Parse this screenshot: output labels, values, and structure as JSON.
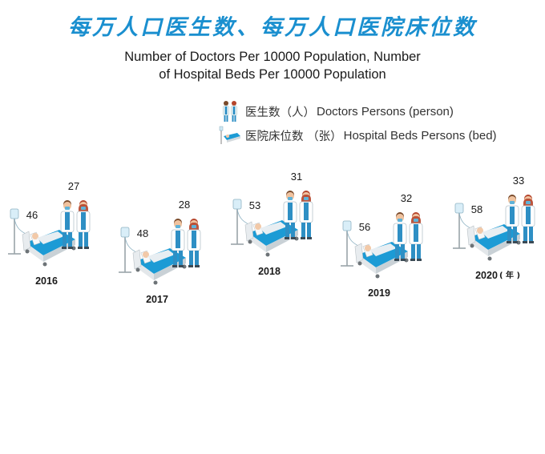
{
  "title_cn": "每万人口医生数、每万人口医院床位数",
  "title_en_line1": "Number of Doctors Per 10000 Population, Number",
  "title_en_line2": "of Hospital Beds Per 10000 Population",
  "legend": {
    "doctors_cn": "医生数（人）",
    "doctors_en": "Doctors Persons (person)",
    "beds_cn": "医院床位数 （张）",
    "beds_en": "Hospital Beds Persons (bed)"
  },
  "year_unit": "( 年 )",
  "colors": {
    "title": "#1a8fcf",
    "bed": "#1c9bd5",
    "scrub": "#2e8fc4",
    "coat": "#ffffff"
  },
  "chart_data": {
    "type": "pictograph",
    "categories": [
      "2016",
      "2017",
      "2018",
      "2019",
      "2020"
    ],
    "series": [
      {
        "name": "医生数（人）Doctors Persons (person)",
        "values": [
          27,
          28,
          31,
          32,
          33
        ]
      },
      {
        "name": "医院床位数（张）Hospital Beds Persons (bed)",
        "values": [
          46,
          48,
          53,
          56,
          58
        ]
      }
    ]
  }
}
